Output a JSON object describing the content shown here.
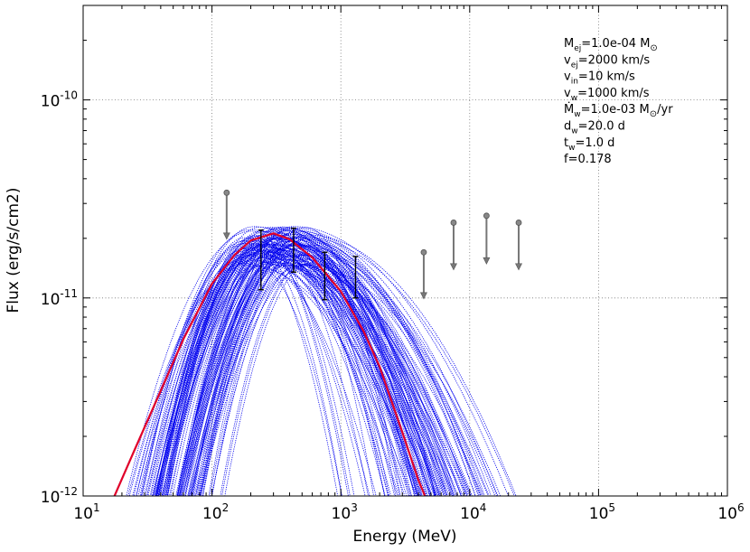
{
  "chart_data": {
    "type": "line",
    "xlabel": "Energy (MeV)",
    "ylabel": "Flux (erg/s/cm2)",
    "xscale": "log",
    "yscale": "log",
    "xlim": [
      10,
      1000000
    ],
    "ylim": [
      1e-12,
      3e-10
    ],
    "grid": true,
    "x_ticks": [
      {
        "value": 10,
        "base": "10",
        "exp": "1"
      },
      {
        "value": 100,
        "base": "10",
        "exp": "2"
      },
      {
        "value": 1000,
        "base": "10",
        "exp": "3"
      },
      {
        "value": 10000,
        "base": "10",
        "exp": "4"
      },
      {
        "value": 100000,
        "base": "10",
        "exp": "5"
      },
      {
        "value": 1000000,
        "base": "10",
        "exp": "6"
      }
    ],
    "y_ticks": [
      {
        "value": 1e-12,
        "base": "10",
        "exp": "-12"
      },
      {
        "value": 1e-11,
        "base": "10",
        "exp": "-11"
      },
      {
        "value": 1e-10,
        "base": "10",
        "exp": "-10"
      }
    ],
    "best_fit": {
      "color": "#e0002a",
      "points": [
        [
          17.5,
          1e-12
        ],
        [
          25,
          1.7e-12
        ],
        [
          40,
          3.4e-12
        ],
        [
          60,
          6.2e-12
        ],
        [
          100,
          1.18e-11
        ],
        [
          150,
          1.65e-11
        ],
        [
          200,
          1.95e-11
        ],
        [
          300,
          2.12e-11
        ],
        [
          400,
          1.98e-11
        ],
        [
          600,
          1.6e-11
        ],
        [
          1000,
          1.08e-11
        ],
        [
          1500,
          6.8e-12
        ],
        [
          2000,
          4.5e-12
        ],
        [
          3000,
          2.1e-12
        ],
        [
          4000,
          1.2e-12
        ],
        [
          4500,
          1e-12
        ]
      ]
    },
    "model_curves": {
      "color": "#0000ee",
      "count": 130,
      "peak_x_range": [
        180,
        600
      ],
      "peak_y_range": [
        1.45e-11,
        2.3e-11
      ],
      "low_width_range": [
        0.42,
        0.6
      ],
      "high_width_range": [
        0.42,
        1.02
      ]
    },
    "detections": [
      {
        "x": 240,
        "y": 1.6e-11,
        "ylo": 1.1e-11,
        "yhi": 2.2e-11
      },
      {
        "x": 430,
        "y": 1.75e-11,
        "ylo": 1.35e-11,
        "yhi": 2.25e-11
      },
      {
        "x": 750,
        "y": 1.35e-11,
        "ylo": 9.8e-12,
        "yhi": 1.7e-11
      },
      {
        "x": 1300,
        "y": 1.3e-11,
        "ylo": 1e-11,
        "yhi": 1.62e-11
      }
    ],
    "upper_limits": [
      {
        "x": 130,
        "y": 3.4e-11,
        "arrow_to": 2e-11
      },
      {
        "x": 4400,
        "y": 1.7e-11,
        "arrow_to": 1e-11
      },
      {
        "x": 7500,
        "y": 2.4e-11,
        "arrow_to": 1.4e-11
      },
      {
        "x": 13500,
        "y": 2.6e-11,
        "arrow_to": 1.5e-11
      },
      {
        "x": 24000,
        "y": 2.4e-11,
        "arrow_to": 1.4e-11
      }
    ],
    "annotations": [
      {
        "sym": "M",
        "sub": "ej",
        "rest": "=1.0e-04 M",
        "solar": true,
        "tail": ""
      },
      {
        "sym": "v",
        "sub": "ej",
        "rest": "=2000 km/s",
        "solar": false,
        "tail": ""
      },
      {
        "sym": "v",
        "sub": "in",
        "rest": "=10 km/s",
        "solar": false,
        "tail": ""
      },
      {
        "sym": "v",
        "sub": "w",
        "rest": "=1000 km/s",
        "solar": false,
        "tail": ""
      },
      {
        "sym": "Ṁ",
        "sub": "w",
        "rest": "=1.0e-03 M",
        "solar": true,
        "tail": "/yr"
      },
      {
        "sym": "d",
        "sub": "w",
        "rest": "=20.0 d",
        "solar": false,
        "tail": ""
      },
      {
        "sym": "t",
        "sub": "w",
        "rest": "=1.0 d",
        "solar": false,
        "tail": ""
      },
      {
        "sym": "f",
        "sub": "",
        "rest": "=0.178",
        "solar": false,
        "tail": ""
      }
    ]
  }
}
